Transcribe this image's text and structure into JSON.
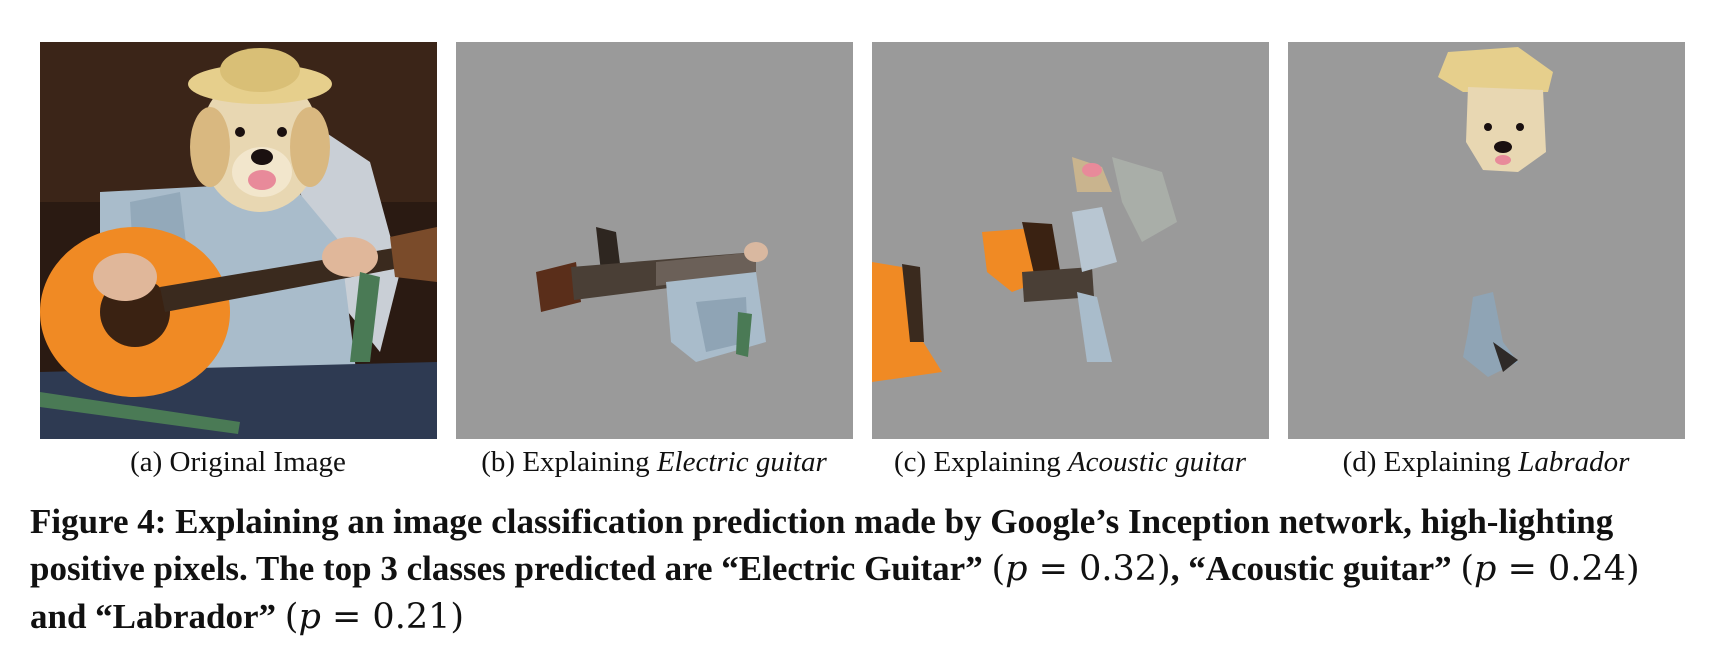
{
  "panels": [
    {
      "letter": "(a)",
      "prefix": "Original Image",
      "class_name": ""
    },
    {
      "letter": "(b)",
      "prefix": "Explaining",
      "class_name": "Electric guitar"
    },
    {
      "letter": "(c)",
      "prefix": "Explaining",
      "class_name": "Acoustic guitar"
    },
    {
      "letter": "(d)",
      "prefix": "Explaining",
      "class_name": "Labrador"
    }
  ],
  "figure_caption": {
    "label": "Figure 4:",
    "text_1": "Explaining an image classification prediction made by Google’s Inception network, high-lighting positive pixels. The top 3 classes predicted are “Electric Guitar”",
    "p1_var": "p",
    "p1_val": "0.32",
    "text_2": ", “Acoustic guitar”",
    "p2_var": "p",
    "p2_val": "0.24",
    "text_3": " and “Labrador”",
    "p3_var": "p",
    "p3_val": "0.21"
  },
  "colors": {
    "mask_gray": "#9a9a9a",
    "guitar_orange": "#f08a24",
    "shirt_blue": "#a9bccb",
    "dog_fur": "#e8d7b2",
    "hat_straw": "#e6cf8c",
    "background_dark": "#2a1a12"
  }
}
